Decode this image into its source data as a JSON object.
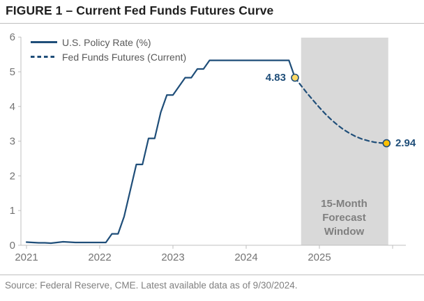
{
  "title": "FIGURE 1 – Current Fed Funds Futures Curve",
  "footer": {
    "source": "Source: Federal Reserve, CME. Latest available data as of 9/30/2024."
  },
  "legend": [
    {
      "label": "U.S. Policy Rate (%)",
      "style": "solid"
    },
    {
      "label": "Fed Funds Futures (Current)",
      "style": "dashed"
    }
  ],
  "band": {
    "label_lines": [
      "15-Month",
      "Forecast",
      "Window"
    ]
  },
  "colors": {
    "navy": "#1F4E79",
    "marker_start_fill": "#FFD966",
    "marker_end_fill": "#FFC000",
    "band_fill": "#D9D9D9",
    "band_text": "#7F7F7F",
    "axis": "#BFBFBF",
    "tick_text": "#737373",
    "legend_text": "#595959",
    "footer_text": "#808080",
    "title_text": "#1F1F1F"
  },
  "chart_data": {
    "type": "line",
    "title": "Current Fed Funds Futures Curve",
    "xlabel": "",
    "ylabel": "",
    "ylim": [
      0,
      6
    ],
    "y_ticks": [
      0,
      1,
      2,
      3,
      4,
      5,
      6
    ],
    "x_ticks": [
      "2021",
      "2022",
      "2023",
      "2024",
      "2025"
    ],
    "grid": false,
    "legend_position": "top-left",
    "series": [
      {
        "name": "U.S. Policy Rate (%)",
        "style": "solid",
        "start_month": "2021-01",
        "values": [
          0.09,
          0.08,
          0.07,
          0.07,
          0.06,
          0.08,
          0.1,
          0.09,
          0.08,
          0.08,
          0.08,
          0.08,
          0.08,
          0.08,
          0.33,
          0.33,
          0.83,
          1.58,
          2.33,
          2.33,
          3.08,
          3.08,
          3.83,
          4.33,
          4.33,
          4.58,
          4.83,
          4.83,
          5.08,
          5.08,
          5.33,
          5.33,
          5.33,
          5.33,
          5.33,
          5.33,
          5.33,
          5.33,
          5.33,
          5.33,
          5.33,
          5.33,
          5.33,
          5.33,
          4.83
        ]
      },
      {
        "name": "Fed Funds Futures (Current)",
        "style": "dashed",
        "start_month": "2024-09",
        "values": [
          4.83,
          4.6,
          4.38,
          4.17,
          3.97,
          3.78,
          3.61,
          3.46,
          3.33,
          3.22,
          3.13,
          3.06,
          3.01,
          2.97,
          2.95,
          2.94
        ]
      }
    ],
    "endpoints": [
      {
        "month": "2024-09",
        "value": 4.83,
        "label": "4.83"
      },
      {
        "month": "2025-12",
        "value": 2.94,
        "label": "2.94"
      }
    ],
    "forecast_window": {
      "label": "15-Month Forecast Window",
      "start": "2024-10",
      "end": "2025-12"
    }
  }
}
